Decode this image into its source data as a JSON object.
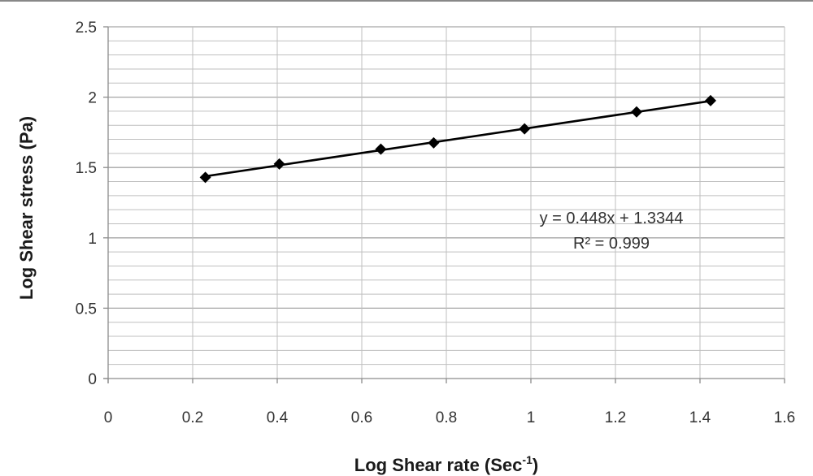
{
  "chart_data": {
    "type": "scatter",
    "xlabel": "Log Shear rate (Sec",
    "xlabel_superscript": "-1",
    "xlabel_suffix": ")",
    "ylabel": "Log Shear stress (Pa)",
    "xlim": [
      0,
      1.6
    ],
    "ylim": [
      0,
      2.5
    ],
    "x_ticks": [
      "0",
      "0.2",
      "0.4",
      "0.6",
      "0.8",
      "1",
      "1.2",
      "1.4",
      "1.6"
    ],
    "y_ticks": [
      "0",
      "0.5",
      "1",
      "1.5",
      "2",
      "2.5"
    ],
    "grid": true,
    "minor_grid_step": 0.1,
    "marker": "diamond",
    "series": [
      {
        "x": [
          0.23,
          0.405,
          0.645,
          0.77,
          0.985,
          1.25,
          1.425
        ],
        "y": [
          1.43,
          1.525,
          1.63,
          1.675,
          1.775,
          1.895,
          1.975
        ]
      }
    ],
    "trendline": {
      "slope": 0.448,
      "intercept": 1.3344
    },
    "annotations": [
      "y = 0.448x + 1.3344",
      "R² = 0.999"
    ],
    "colors": {
      "marker": "#000000",
      "line": "#000000",
      "grid": "#bfbfbf",
      "axis": "#8c8c8c"
    }
  }
}
